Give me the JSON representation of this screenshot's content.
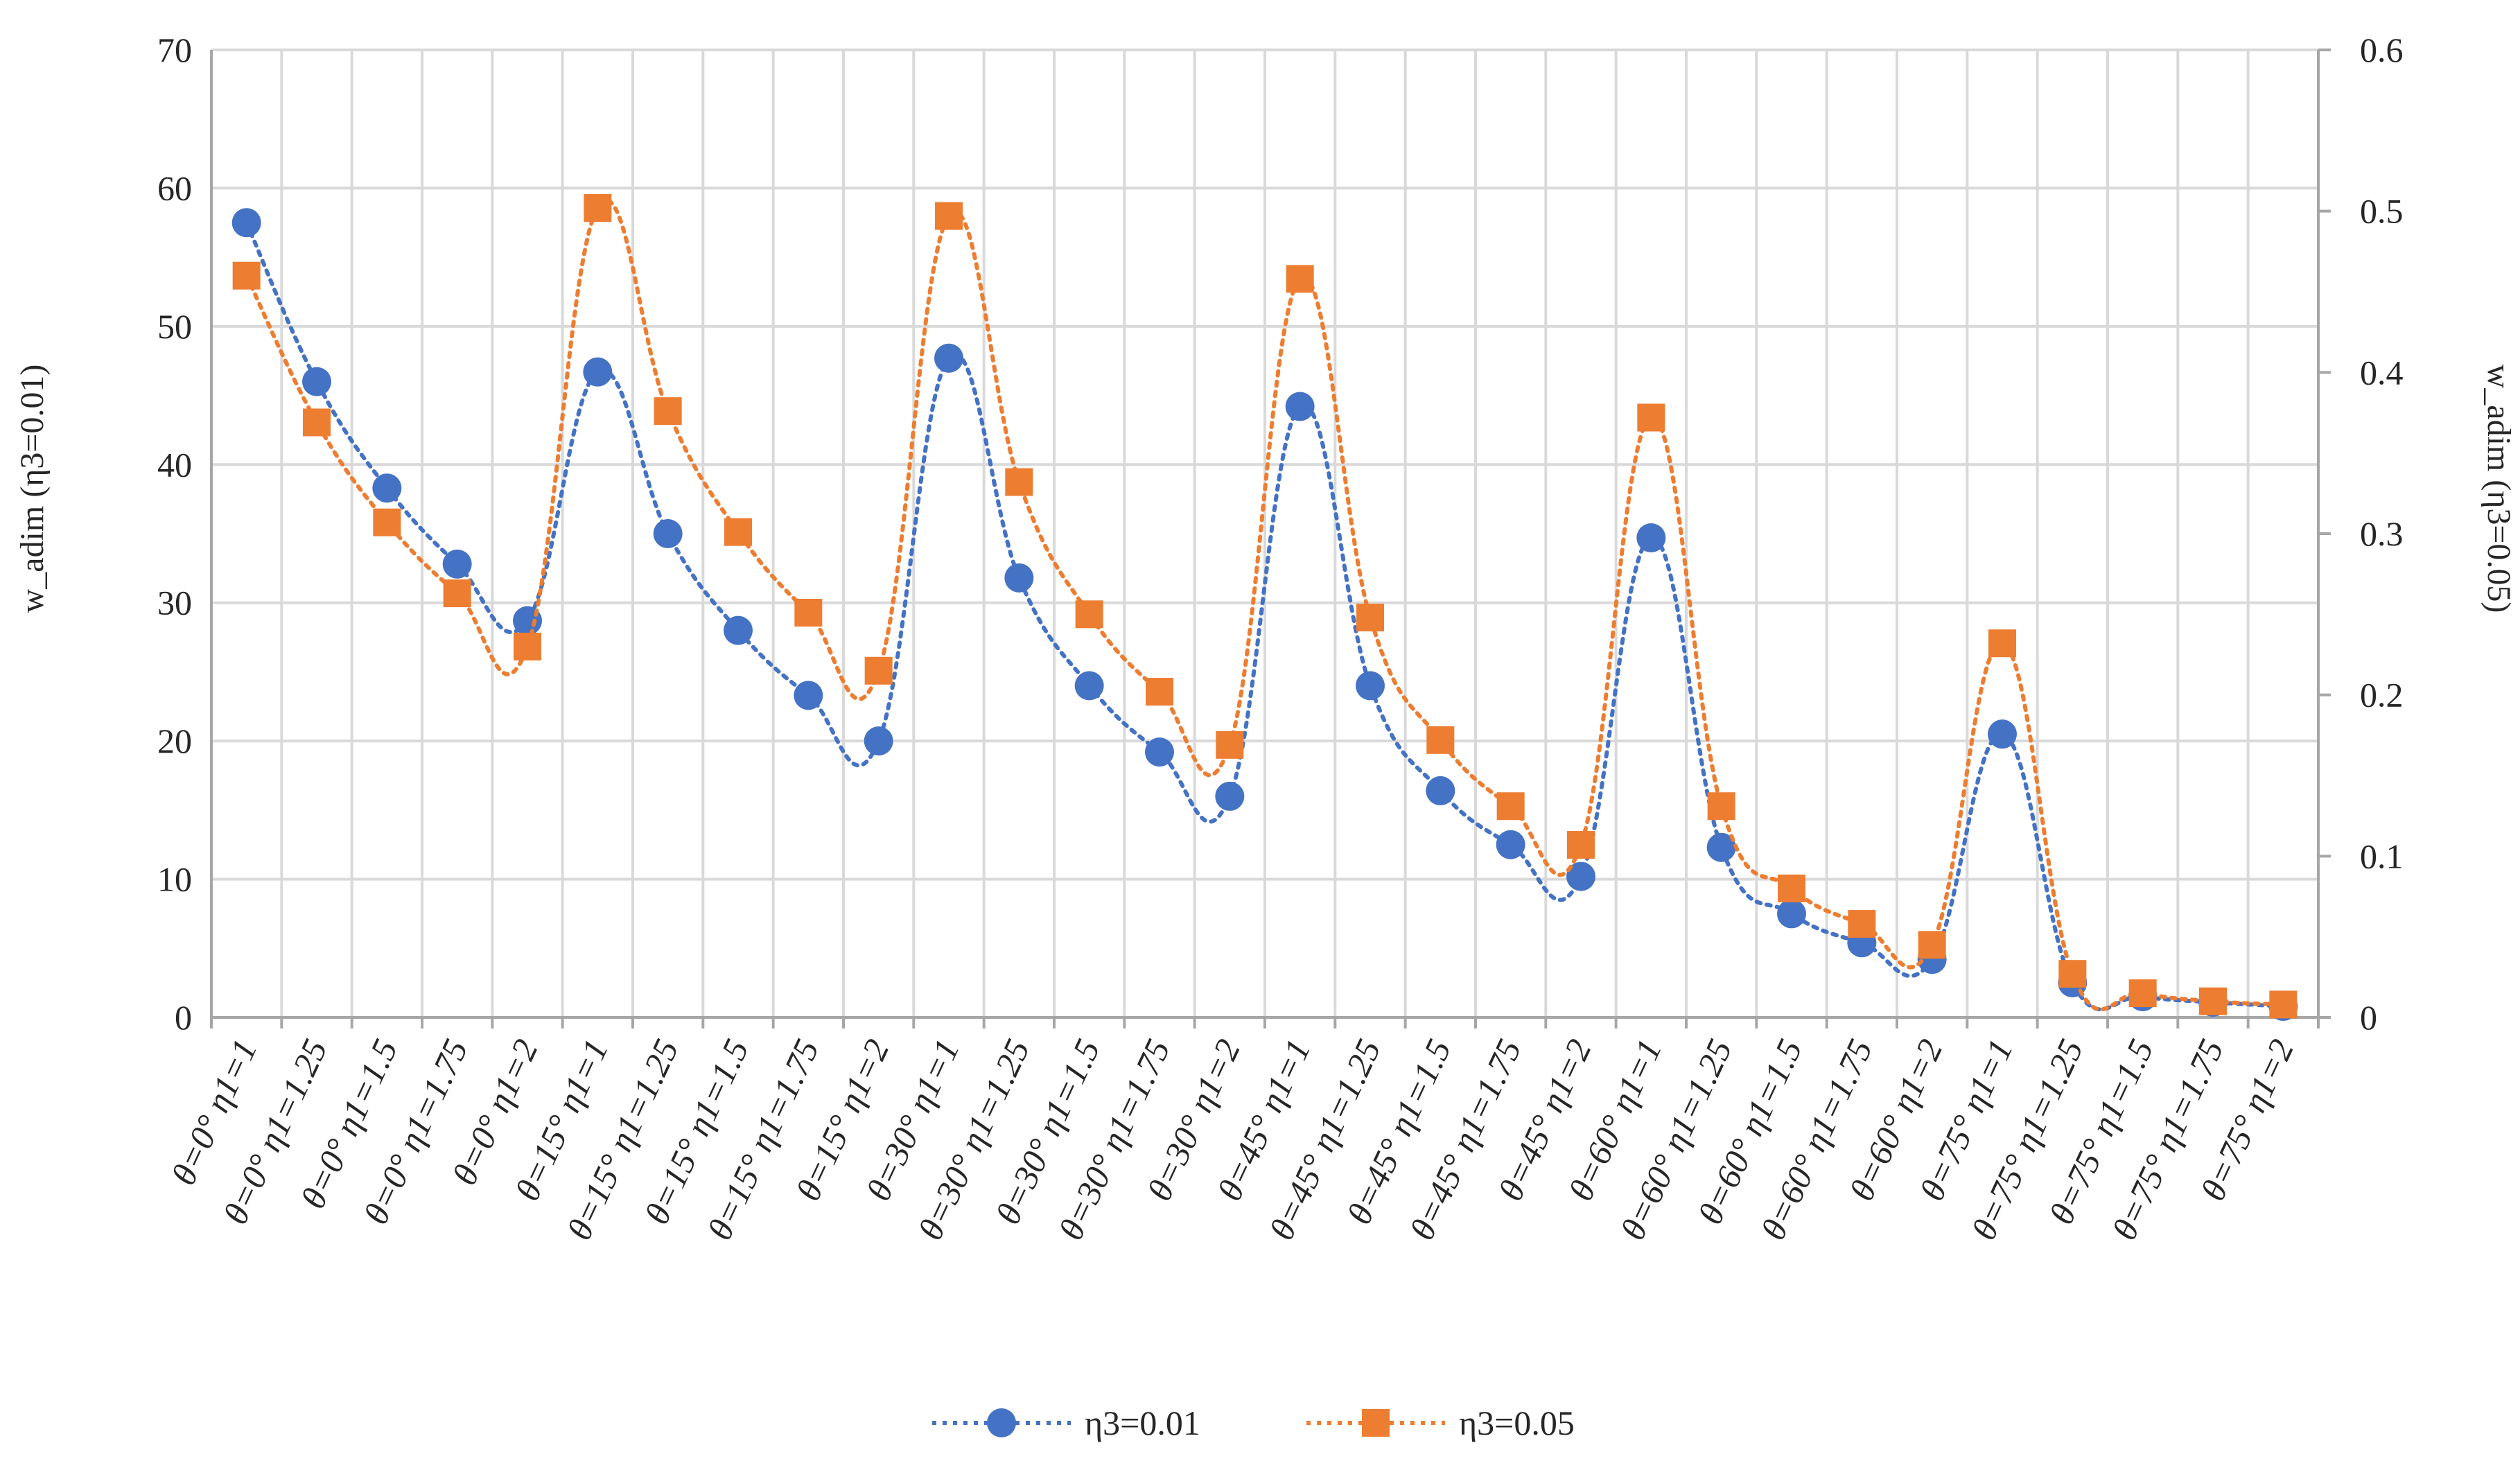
{
  "chart_data": {
    "type": "line",
    "title": "",
    "xlabel": "",
    "ylabel": "w_adim (η3=0.01)",
    "y2label": "w_adim (η3=0.05)",
    "ylim": [
      0,
      70
    ],
    "y2lim": [
      0,
      0.6
    ],
    "yticks": [
      "0",
      "10",
      "20",
      "30",
      "40",
      "50",
      "60",
      "70"
    ],
    "y2ticks": [
      "0",
      "0.1",
      "0.2",
      "0.3",
      "0.4",
      "0.5",
      "0.6"
    ],
    "grid": true,
    "legend_position": "bottom-center",
    "categories": [
      "θ=0° η1=1",
      "θ=0° η1=1.25",
      "θ=0° η1=1.5",
      "θ=0° η1=1.75",
      "θ=0° η1=2",
      "θ=15° η1=1",
      "θ=15° η1=1.25",
      "θ=15° η1=1.5",
      "θ=15° η1=1.75",
      "θ=15° η1=2",
      "θ=30° η1=1",
      "θ=30° η1=1.25",
      "θ=30° η1=1.5",
      "θ=30° η1=1.75",
      "θ=30° η1=2",
      "θ=45° η1=1",
      "θ=45° η1=1.25",
      "θ=45° η1=1.5",
      "θ=45° η1=1.75",
      "θ=45° η1=2",
      "θ=60° η1=1",
      "θ=60° η1=1.25",
      "θ=60° η1=1.5",
      "θ=60° η1=1.75",
      "θ=60° η1=2",
      "θ=75° η1=1",
      "θ=75° η1=1.25",
      "θ=75° η1=1.5",
      "θ=75° η1=1.75",
      "θ=75° η1=2"
    ],
    "series": [
      {
        "name": "η3=0.01",
        "axis": "left",
        "marker": "circle",
        "color": "#4472C4",
        "values": [
          57.5,
          46,
          38.3,
          32.8,
          28.7,
          46.7,
          35,
          28,
          23.3,
          20,
          47.7,
          31.8,
          24,
          19.2,
          16,
          44.2,
          24,
          16.4,
          12.5,
          10.2,
          34.7,
          12.3,
          7.5,
          5.4,
          4.2,
          20.5,
          2.5,
          1.5,
          1.1,
          0.8
        ]
      },
      {
        "name": "η3=0.05",
        "axis": "right",
        "marker": "square",
        "color": "#ED7D31",
        "values": [
          0.46,
          0.369,
          0.307,
          0.263,
          0.23,
          0.502,
          0.376,
          0.301,
          0.251,
          0.215,
          0.497,
          0.332,
          0.25,
          0.202,
          0.169,
          0.458,
          0.248,
          0.172,
          0.131,
          0.107,
          0.372,
          0.131,
          0.08,
          0.058,
          0.045,
          0.232,
          0.027,
          0.015,
          0.01,
          0.008
        ]
      }
    ]
  }
}
